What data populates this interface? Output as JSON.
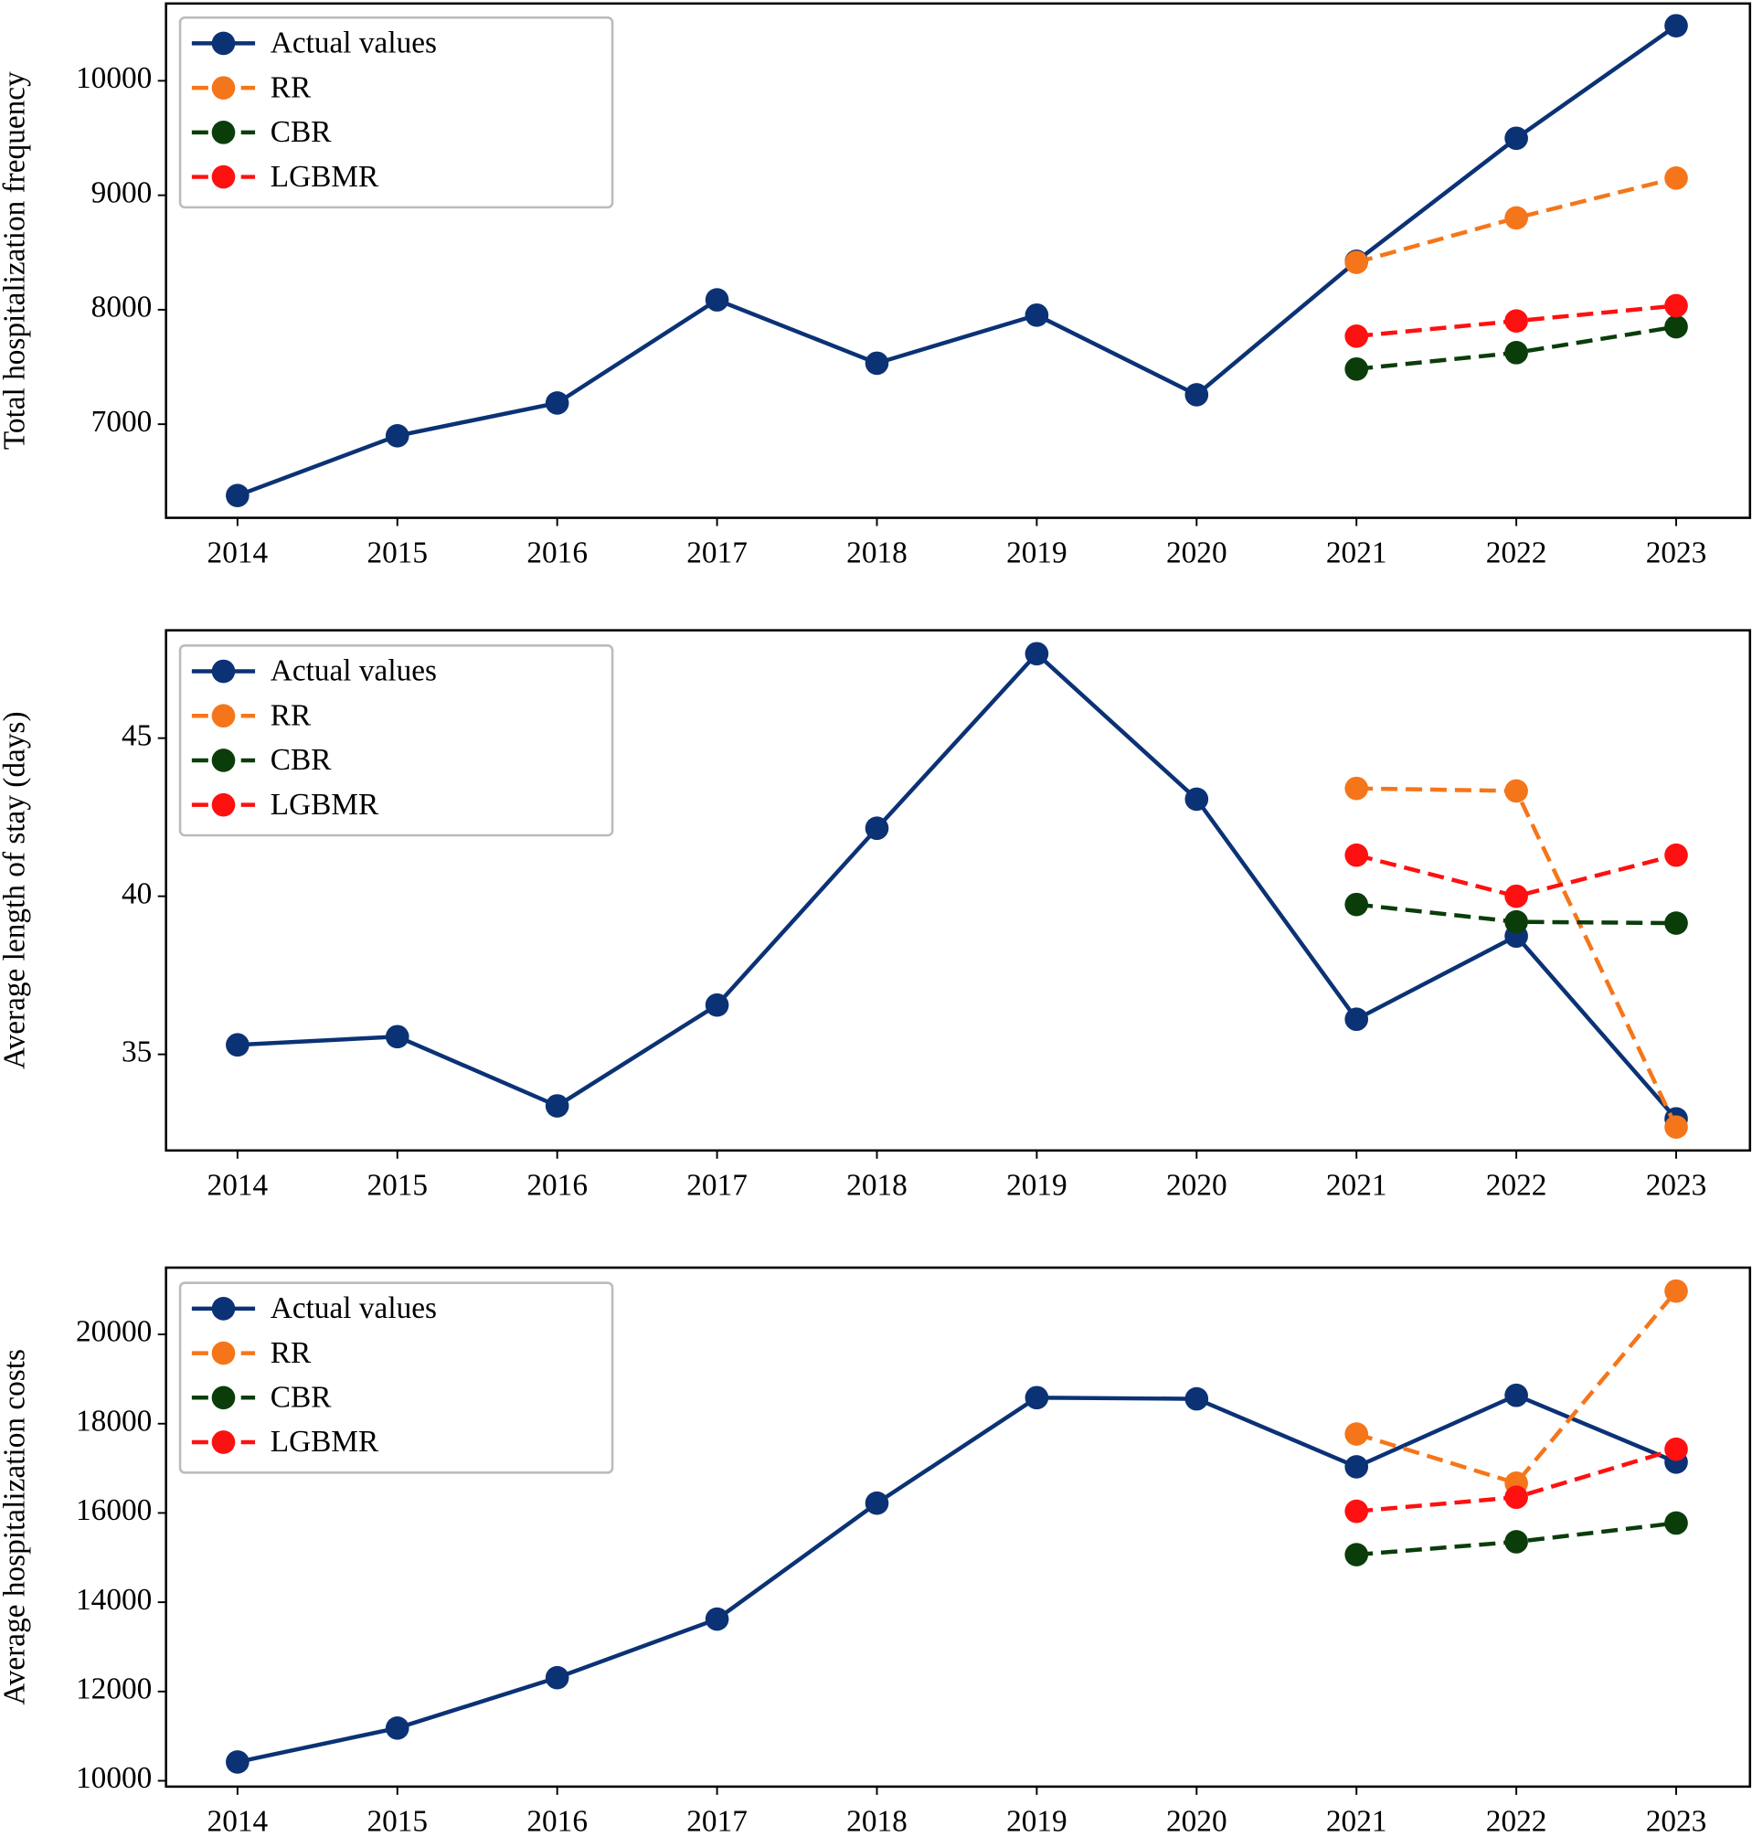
{
  "chart_data": [
    {
      "type": "line",
      "ylabel": "Total hospitalization frequency",
      "categories": [
        "2014",
        "2015",
        "2016",
        "2017",
        "2018",
        "2019",
        "2020",
        "2021",
        "2022",
        "2023"
      ],
      "ylim": [
        6182,
        10675
      ],
      "yticks": [
        7000,
        8000,
        9000,
        10000
      ],
      "legend": "upper left",
      "series": [
        {
          "name": "Actual values",
          "color": "#0b3275",
          "dashed": false,
          "values": [
            6377,
            6899,
            7185,
            8086,
            7533,
            7953,
            7257,
            8424,
            9498,
            10481
          ]
        },
        {
          "name": "RR",
          "color": "#f5761a",
          "dashed": true,
          "values": [
            null,
            null,
            null,
            null,
            null,
            null,
            null,
            8414,
            8802,
            9150
          ]
        },
        {
          "name": "CBR",
          "color": "#0a3d0a",
          "dashed": true,
          "values": [
            null,
            null,
            null,
            null,
            null,
            null,
            null,
            7482,
            7625,
            7851
          ]
        },
        {
          "name": "LGBMR",
          "color": "#ff1010",
          "dashed": true,
          "values": [
            null,
            null,
            null,
            null,
            null,
            null,
            null,
            7769,
            7902,
            8035
          ]
        }
      ]
    },
    {
      "type": "line",
      "ylabel": "Average length of stay (days)",
      "categories": [
        "2014",
        "2015",
        "2016",
        "2017",
        "2018",
        "2019",
        "2020",
        "2021",
        "2022",
        "2023"
      ],
      "ylim": [
        31.96,
        48.41
      ],
      "yticks": [
        35,
        40,
        45
      ],
      "legend": "upper left",
      "series": [
        {
          "name": "Actual values",
          "color": "#0b3275",
          "dashed": false,
          "values": [
            35.3,
            35.56,
            33.37,
            36.56,
            42.15,
            47.67,
            43.07,
            36.11,
            38.74,
            32.96
          ]
        },
        {
          "name": "RR",
          "color": "#f5761a",
          "dashed": true,
          "values": [
            null,
            null,
            null,
            null,
            null,
            null,
            null,
            43.41,
            43.33,
            32.7
          ]
        },
        {
          "name": "CBR",
          "color": "#0a3d0a",
          "dashed": true,
          "values": [
            null,
            null,
            null,
            null,
            null,
            null,
            null,
            39.74,
            39.19,
            39.15
          ]
        },
        {
          "name": "LGBMR",
          "color": "#ff1010",
          "dashed": true,
          "values": [
            null,
            null,
            null,
            null,
            null,
            null,
            null,
            41.3,
            40.0,
            41.3
          ]
        }
      ]
    },
    {
      "type": "line",
      "ylabel": "Average hospitalization costs",
      "categories": [
        "2014",
        "2015",
        "2016",
        "2017",
        "2018",
        "2019",
        "2020",
        "2021",
        "2022",
        "2023"
      ],
      "ylim": [
        9869,
        21496
      ],
      "yticks": [
        10000,
        12000,
        14000,
        16000,
        18000,
        20000
      ],
      "legend": "upper left",
      "series": [
        {
          "name": "Actual values",
          "color": "#0b3275",
          "dashed": false,
          "values": [
            10420,
            11181,
            12310,
            13622,
            16220,
            18583,
            18556,
            17034,
            18635,
            17139
          ]
        },
        {
          "name": "RR",
          "color": "#f5761a",
          "dashed": true,
          "values": [
            null,
            null,
            null,
            null,
            null,
            null,
            null,
            17769,
            16667,
            20971
          ]
        },
        {
          "name": "CBR",
          "color": "#0a3d0a",
          "dashed": true,
          "values": [
            null,
            null,
            null,
            null,
            null,
            null,
            null,
            15066,
            15354,
            15774
          ]
        },
        {
          "name": "LGBMR",
          "color": "#ff1010",
          "dashed": true,
          "values": [
            null,
            null,
            null,
            null,
            null,
            null,
            null,
            16037,
            16352,
            17428
          ]
        }
      ]
    }
  ]
}
